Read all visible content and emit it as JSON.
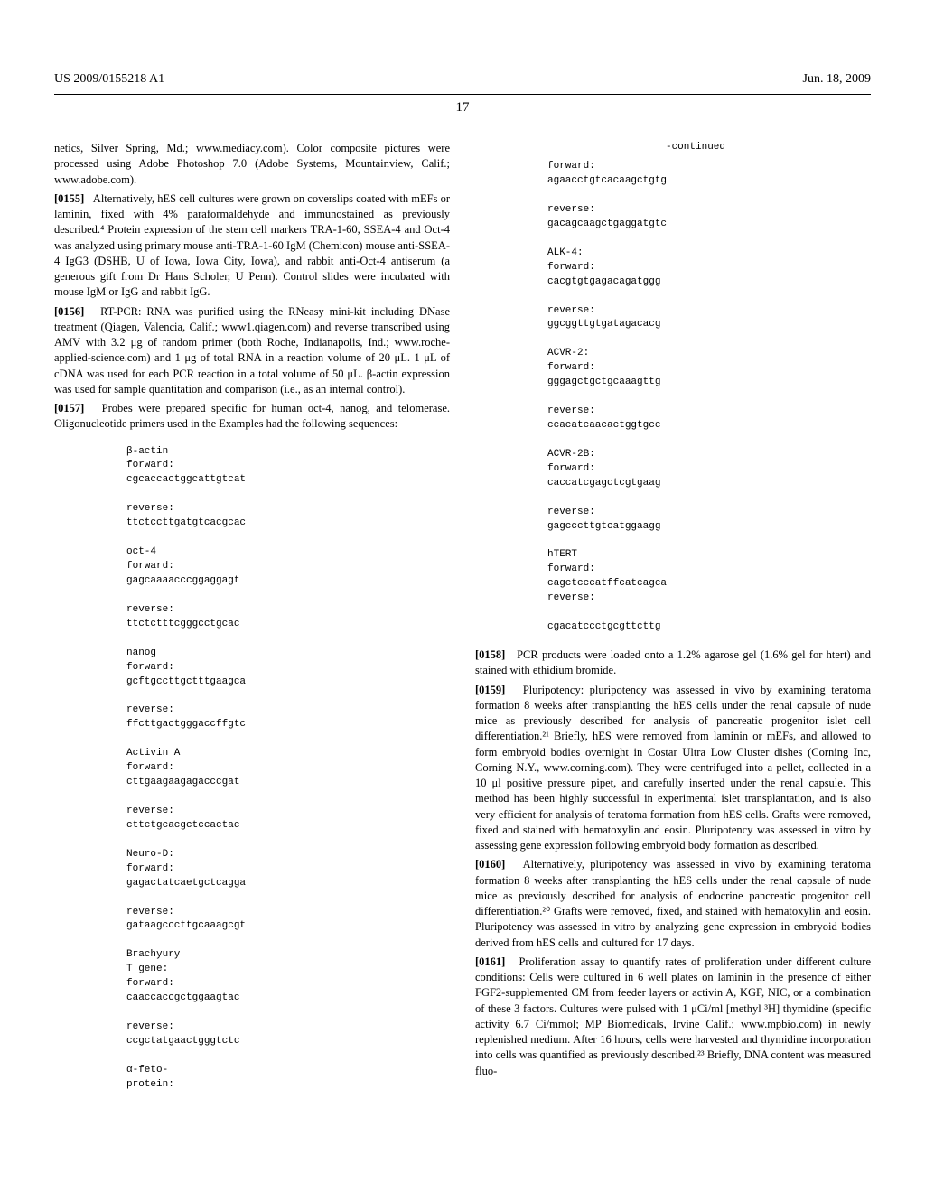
{
  "header": {
    "left": "US 2009/0155218 A1",
    "right": "Jun. 18, 2009"
  },
  "page_number": "17",
  "left_column": {
    "p1": "netics, Silver Spring, Md.; www.mediacy.com). Color composite pictures were processed using Adobe Photoshop 7.0 (Adobe Systems, Mountainview, Calif.; www.adobe.com).",
    "p2_num": "[0155]",
    "p2": "Alternatively, hES cell cultures were grown on coverslips coated with mEFs or laminin, fixed with 4% paraformaldehyde and immunostained as previously described.⁴ Protein expression of the stem cell markers TRA-1-60, SSEA-4 and Oct-4 was analyzed using primary mouse anti-TRA-1-60 IgM (Chemicon) mouse anti-SSEA-4 IgG3 (DSHB, U of Iowa, Iowa City, Iowa), and rabbit anti-Oct-4 antiserum (a generous gift from Dr Hans Scholer, U Penn). Control slides were incubated with mouse IgM or IgG and rabbit IgG.",
    "p3_num": "[0156]",
    "p3": "RT-PCR: RNA was purified using the RNeasy mini-kit including DNase treatment (Qiagen, Valencia, Calif.; www1.qiagen.com) and reverse transcribed using AMV with 3.2 μg of random primer (both Roche, Indianapolis, Ind.; www.roche-applied-science.com) and 1 μg of total RNA in a reaction volume of 20 μL. 1 μL of cDNA was used for each PCR reaction in a total volume of 50 μL. β-actin expression was used for sample quantitation and comparison (i.e., as an internal control).",
    "p4_num": "[0157]",
    "p4": "Probes were prepared specific for human oct-4, nanog, and telomerase. Oligonucleotide primers used in the Examples had the following sequences:",
    "seq": "β-actin\nforward:\ncgcaccactggcattgtcat\n\nreverse:\nttctccttgatgtcacgcac\n\noct-4\nforward:\ngagcaaaacccggaggagt\n\nreverse:\nttctctttcgggcctgcac\n\nnanog\nforward:\ngcftgccttgctttgaagca\n\nreverse:\nffcttgactgggaccffgtc\n\nActivin A\nforward:\ncttgaagaagagacccgat\n\nreverse:\ncttctgcacgctccactac\n\nNeuro-D:\nforward:\ngagactatcaetgctcagga\n\nreverse:\ngataagcccttgcaaagcgt\n\nBrachyury\nT gene:\nforward:\ncaaccaccgctggaagtac\n\nreverse:\nccgctatgaactgggtctc\n\nα-feto-\nprotein:"
  },
  "right_column": {
    "continued": "-continued",
    "seq": "forward:\nagaacctgtcacaagctgtg\n\nreverse:\ngacagcaagctgaggatgtc\n\nALK-4:\nforward:\ncacgtgtgagacagatggg\n\nreverse:\nggcggttgtgatagacacg\n\nACVR-2:\nforward:\ngggagctgctgcaaagttg\n\nreverse:\nccacatcaacactggtgcc\n\nACVR-2B:\nforward:\ncaccatcgagctcgtgaag\n\nreverse:\ngagcccttgtcatggaagg\n\nhTERT\nforward:\ncagctcccatffcatcagca\nreverse:\n\ncgacatccctgcgttcttg",
    "p5_num": "[0158]",
    "p5": "PCR products were loaded onto a 1.2% agarose gel (1.6% gel for htert) and stained with ethidium bromide.",
    "p6_num": "[0159]",
    "p6": "Pluripotency: pluripotency was assessed in vivo by examining teratoma formation 8 weeks after transplanting the hES cells under the renal capsule of nude mice as previously described for analysis of pancreatic progenitor islet cell differentiation.²¹ Briefly, hES were removed from laminin or mEFs, and allowed to form embryoid bodies overnight in Costar Ultra Low Cluster dishes (Corning Inc, Corning N.Y., www.corning.com). They were centrifuged into a pellet, collected in a 10 μl positive pressure pipet, and carefully inserted under the renal capsule. This method has been highly successful in experimental islet transplantation, and is also very efficient for analysis of teratoma formation from hES cells. Grafts were removed, fixed and stained with hematoxylin and eosin. Pluripotency was assessed in vitro by assessing gene expression following embryoid body formation as described.",
    "p7_num": "[0160]",
    "p7": "Alternatively, pluripotency was assessed in vivo by examining teratoma formation 8 weeks after transplanting the hES cells under the renal capsule of nude mice as previously described for analysis of endocrine pancreatic progenitor cell differentiation.²⁰ Grafts were removed, fixed, and stained with hematoxylin and eosin. Pluripotency was assessed in vitro by analyzing gene expression in embryoid bodies derived from hES cells and cultured for 17 days.",
    "p8_num": "[0161]",
    "p8": "Proliferation assay to quantify rates of proliferation under different culture conditions: Cells were cultured in 6 well plates on laminin in the presence of either FGF2-supplemented CM from feeder layers or activin A, KGF, NIC, or a combination of these 3 factors. Cultures were pulsed with 1 μCi/ml [methyl ³H] thymidine (specific activity 6.7 Ci/mmol; MP Biomedicals, Irvine Calif.; www.mpbio.com) in newly replenished medium. After 16 hours, cells were harvested and thymidine incorporation into cells was quantified as previously described.²³ Briefly, DNA content was measured fluo-"
  }
}
